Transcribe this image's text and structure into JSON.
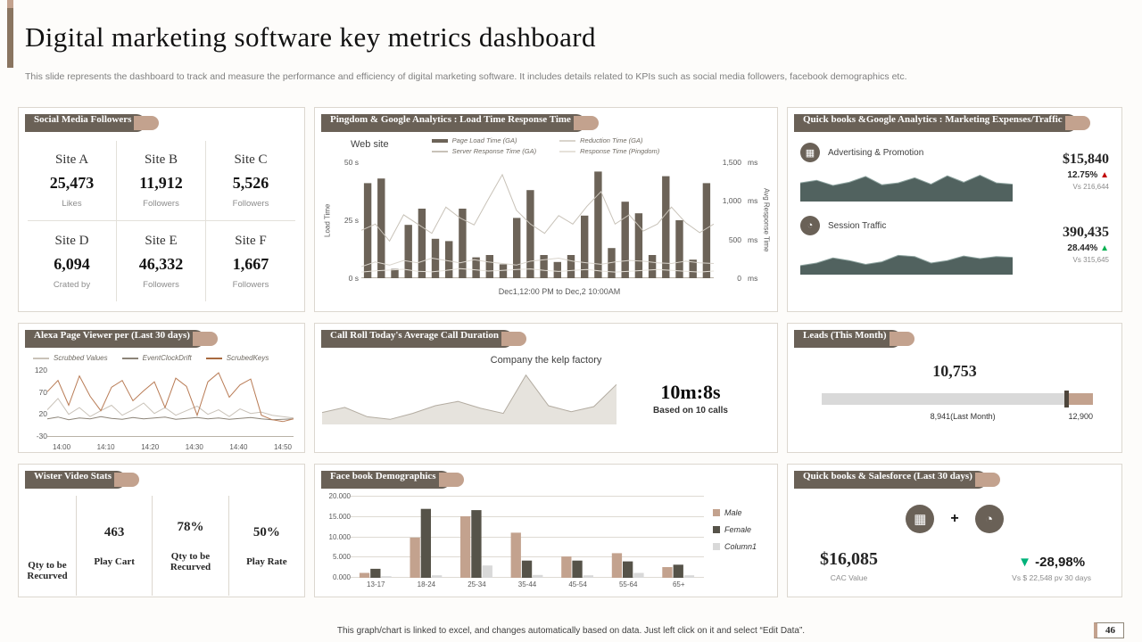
{
  "colors": {
    "ribbon_dark": "#6a6157",
    "ribbon_tan": "#c3a28e",
    "bar_dark": "#6c6358",
    "area_slate": "#51625f",
    "tan": "#c3a28e",
    "female_dark": "#565349",
    "column1_gray": "#d9d9d9",
    "up_red": "#c00000",
    "up_green": "#00b050",
    "down_teal": "#00b27a"
  },
  "page": {
    "title": "Digital marketing software key metrics dashboard",
    "subtitle": "This slide represents the dashboard to track and measure the performance and efficiency of digital marketing software. It includes details related to KPIs such as social media followers, facebook demographics etc.",
    "footer_note": "This graph/chart is linked to excel, and changes automatically based on data. Just left click on it and select “Edit Data”.",
    "page_number": "46"
  },
  "social": {
    "header": "Social Media Followers",
    "cells": [
      {
        "site": "Site A",
        "value": "25,473",
        "label": "Likes"
      },
      {
        "site": "Site B",
        "value": "11,912",
        "label": "Followers"
      },
      {
        "site": "Site C",
        "value": "5,526",
        "label": "Followers"
      },
      {
        "site": "Site D",
        "value": "6,094",
        "label": "Crated by"
      },
      {
        "site": "Site E",
        "value": "46,332",
        "label": "Followers"
      },
      {
        "site": "Site F",
        "value": "1,667",
        "label": "Followers"
      }
    ]
  },
  "pingdom": {
    "header": "Pingdom & Google Analytics : Load  Time Response Time",
    "site_label": "Web site",
    "legend": [
      {
        "label": "Page Load Time (GA)"
      },
      {
        "label": "Server Response Time (GA)"
      },
      {
        "label": "Reduction Time (GA)"
      },
      {
        "label": "Response Time (Pingdom)"
      }
    ],
    "ylabel": "Load Time",
    "y2label": "Avg Response Time",
    "yticks": [
      "50 s",
      "25 s",
      "0 s"
    ],
    "y2ticks": [
      "1,500",
      "1,000",
      "500",
      "0"
    ],
    "y2units": [
      "ms",
      "ms",
      "ms",
      "ms"
    ],
    "xnote": "Dec1,12:00 PM  to Dec,2 10:00AM"
  },
  "expenses": {
    "header": "Quick books &Google Analytics : Marketing Expenses/Traffic",
    "rows": [
      {
        "icon": "▦",
        "label": "Advertising & Promotion",
        "value": "$15,840",
        "pct": "12.75%",
        "dir": "▲",
        "vs": "Vs 216,644"
      },
      {
        "icon": "◔",
        "label": "Session Traffic",
        "value": "390,435",
        "pct": "28.44%",
        "dir": "▲",
        "vs": "Vs 315,645"
      }
    ]
  },
  "alexa": {
    "header": "Alexa Page Viewer per (Last 30 days)",
    "legend": [
      {
        "label": "Scrubbed Values"
      },
      {
        "label": "EventClockDrift"
      },
      {
        "label": "ScrubedKeys"
      }
    ],
    "yticks": [
      "120",
      "70",
      "20",
      "-30"
    ],
    "xticks": [
      "14:00",
      "14:10",
      "14:20",
      "14:30",
      "14:40",
      "14:50"
    ]
  },
  "callroll": {
    "header": "Call Roll Today's Average Call Duration",
    "company": "Company the kelp factory",
    "duration": "10m:8s",
    "basis": "Based on 10 calls"
  },
  "leads": {
    "header": "Leads (This Month)",
    "value": "10,753",
    "last_month": "8,941(Last Month)",
    "max": "12,900",
    "marker_pct": 90
  },
  "wister": {
    "header": "Wister Video Stats",
    "col1": "Qty to be Recurved",
    "cells": [
      {
        "value": "463",
        "label": "Play Cart"
      },
      {
        "value": "78%",
        "label": "Qty to be Recurved"
      },
      {
        "value": "50%",
        "label": "Play Rate"
      }
    ]
  },
  "facebook": {
    "header": "Face book Demographics",
    "yticks": [
      "20.000",
      "15.000",
      "10.000",
      "5.000",
      "0.000"
    ],
    "xticks": [
      "13-17",
      "18-24",
      "25-34",
      "35-44",
      "45-54",
      "55-64",
      "65+"
    ],
    "legend": [
      {
        "label": "Male"
      },
      {
        "label": "Female"
      },
      {
        "label": "Column1"
      }
    ]
  },
  "salesqb": {
    "header": "Quick books & Salesforce (Last 30 days)",
    "plus": "+",
    "icons": [
      "▦",
      "◔"
    ],
    "value": "$16,085",
    "value_label": "CAC Value",
    "delta_dir": "▼",
    "delta": "-28,98%",
    "delta_label": "Vs $ 22,548  pv 30 days"
  },
  "chart_data": [
    {
      "id": "pingdom",
      "type": "bar",
      "title": "Pingdom & Google Analytics : Load Time Response Time",
      "xlabel": "Dec1,12:00 PM to Dec,2 10:00AM",
      "ylabel": "Load Time",
      "y2label": "Avg Response Time",
      "ylim": [
        0,
        50
      ],
      "y2lim": [
        0,
        1500
      ],
      "bar_frac": 0.62,
      "axis": true,
      "series": [
        {
          "name": "Page Load Time (GA)",
          "kind": "bar",
          "color": "#6c6358",
          "values": [
            41,
            43,
            4,
            23,
            30,
            17,
            16,
            30,
            9,
            10,
            6,
            26,
            38,
            10,
            7,
            10,
            27,
            46,
            13,
            33,
            28,
            10,
            44,
            25,
            8,
            41
          ]
        },
        {
          "name": "Server Response Time (GA)",
          "kind": "line",
          "color": "#c8c2b8",
          "ylim": [
            0,
            1500
          ],
          "values": [
            620,
            700,
            480,
            820,
            700,
            580,
            920,
            780,
            690,
            1020,
            1340,
            880,
            700,
            580,
            810,
            700,
            930,
            1120,
            700,
            820,
            610,
            700,
            920,
            720,
            590,
            700
          ]
        },
        {
          "name": "Reduction Time (GA)",
          "kind": "line",
          "color": "#d9d4cc",
          "ylim": [
            0,
            1500
          ],
          "values": [
            150,
            210,
            170,
            230,
            200,
            260,
            230,
            200,
            240,
            210,
            190,
            170,
            220,
            240,
            260,
            220,
            200,
            180,
            210,
            230,
            220,
            200,
            190,
            220,
            200,
            190
          ]
        },
        {
          "name": "Response Time (Pingdom)",
          "kind": "line",
          "color": "#e6e2da",
          "ylim": [
            0,
            1500
          ],
          "values": [
            80,
            95,
            105,
            115,
            90,
            82,
            100,
            125,
            110,
            92,
            100,
            112,
            120,
            100,
            88,
            100,
            112,
            92,
            80,
            90,
            102,
            112,
            100,
            90,
            80,
            92
          ]
        }
      ]
    },
    {
      "id": "adv",
      "type": "area",
      "title": "Advertising & Promotion",
      "ylim": [
        0,
        100
      ],
      "series": [
        {
          "name": "Advertising & Promotion",
          "kind": "area",
          "color": "#51625f",
          "stroke": "#8ba19d",
          "values": [
            58,
            66,
            50,
            60,
            78,
            52,
            58,
            74,
            54,
            80,
            60,
            82,
            58,
            54
          ]
        }
      ]
    },
    {
      "id": "session",
      "type": "area",
      "title": "Session Traffic",
      "ylim": [
        0,
        100
      ],
      "series": [
        {
          "name": "Session Traffic",
          "kind": "area",
          "color": "#51625f",
          "stroke": "#8ba19d",
          "values": [
            28,
            36,
            52,
            44,
            32,
            40,
            60,
            56,
            36,
            44,
            58,
            50,
            56,
            54
          ]
        }
      ]
    },
    {
      "id": "alexa",
      "type": "line",
      "title": "Alexa Page Viewer per (Last 30 days)",
      "ylim": [
        -30,
        120
      ],
      "x": [
        "14:00",
        "14:10",
        "14:20",
        "14:30",
        "14:40",
        "14:50"
      ],
      "axis": true,
      "series": [
        {
          "name": "Scrubbed Values",
          "kind": "line",
          "color": "#c9c2b8",
          "values": [
            30,
            55,
            20,
            35,
            15,
            28,
            40,
            18,
            30,
            45,
            22,
            35,
            18,
            28,
            38,
            20,
            30,
            15,
            32,
            22,
            25,
            18,
            15,
            12
          ]
        },
        {
          "name": "EventClockDrift",
          "kind": "line",
          "color": "#8c8478",
          "values": [
            10,
            14,
            8,
            12,
            10,
            15,
            11,
            9,
            13,
            10,
            12,
            14,
            9,
            11,
            13,
            10,
            12,
            9,
            11,
            13,
            10,
            8,
            9,
            10
          ]
        },
        {
          "name": "ScrubedKeys",
          "kind": "line",
          "color": "#b97c56",
          "values": [
            70,
            95,
            40,
            105,
            60,
            28,
            80,
            95,
            50,
            72,
            92,
            35,
            100,
            82,
            18,
            92,
            112,
            58,
            85,
            98,
            18,
            8,
            4,
            10
          ]
        }
      ]
    },
    {
      "id": "callroll",
      "type": "area",
      "title": "Call Roll Today's Average Call Duration",
      "ylim": [
        0,
        65
      ],
      "series": [
        {
          "name": "Call Duration",
          "kind": "area",
          "color": "#e6e3dd",
          "stroke": "#b3aca1",
          "values": [
            14,
            20,
            9,
            6,
            13,
            22,
            27,
            19,
            13,
            58,
            22,
            15,
            21,
            47
          ]
        }
      ]
    },
    {
      "id": "facebook",
      "type": "bar",
      "title": "Face book Demographics",
      "categories": [
        "13-17",
        "18-24",
        "25-34",
        "35-44",
        "45-54",
        "55-64",
        "65+"
      ],
      "ylim": [
        0,
        20
      ],
      "grid": 4,
      "bar_frac": 0.65,
      "legend_position": "right",
      "series": [
        {
          "name": "Male",
          "kind": "bar",
          "color": "#c3a28e",
          "values": [
            1.2,
            9.8,
            15.0,
            11.0,
            5.2,
            6.0,
            2.6
          ]
        },
        {
          "name": "Female",
          "kind": "bar",
          "color": "#565349",
          "values": [
            2.2,
            16.8,
            16.5,
            4.2,
            4.2,
            4.0,
            3.2
          ]
        },
        {
          "name": "Column1",
          "kind": "bar",
          "color": "#d9d9d9",
          "values": [
            0.4,
            0.6,
            3.0,
            0.7,
            0.6,
            1.2,
            0.6
          ]
        }
      ]
    }
  ]
}
